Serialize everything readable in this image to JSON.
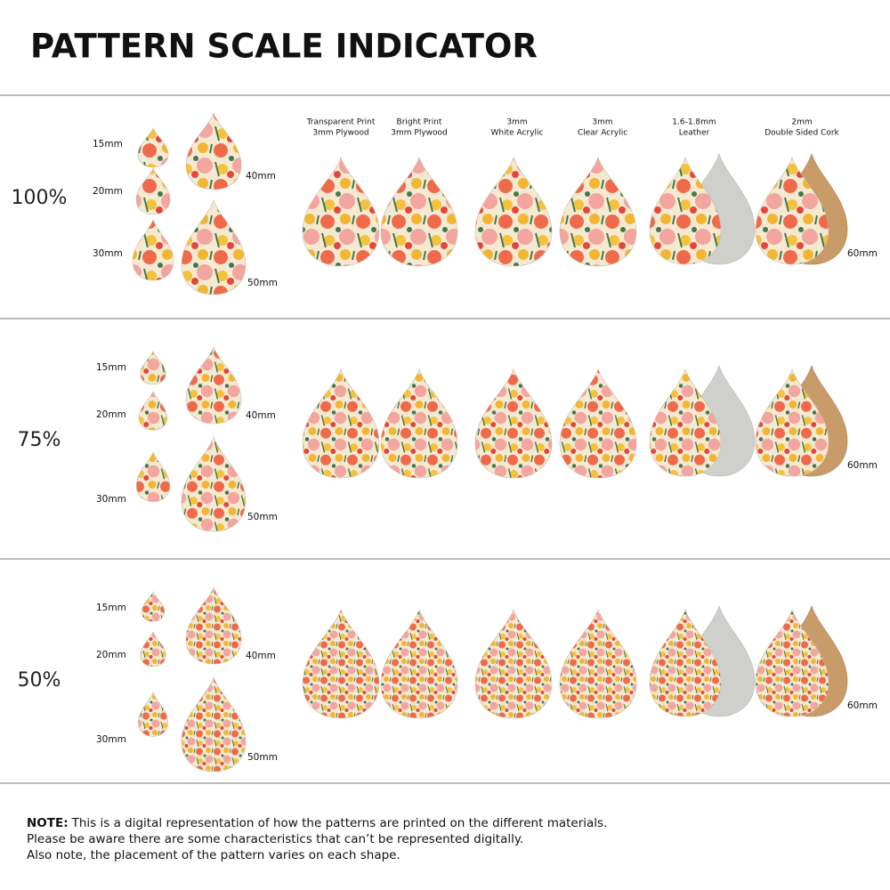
{
  "header": {
    "title": "PATTERN SCALE INDICATOR"
  },
  "materials": [
    {
      "lines": [
        "Transparent Print",
        "3mm Plywood"
      ]
    },
    {
      "lines": [
        "Bright Print",
        "3mm Plywood"
      ]
    },
    {
      "lines": [
        "3mm",
        "White Acrylic"
      ]
    },
    {
      "lines": [
        "3mm",
        "Clear Acrylic"
      ]
    },
    {
      "lines": [
        "1.6-1.8mm",
        "Leather"
      ]
    },
    {
      "lines": [
        "2mm",
        "Double Sided Cork"
      ]
    }
  ],
  "sections": [
    {
      "scale": "100%",
      "sizes": [
        "15mm",
        "20mm",
        "30mm",
        "40mm",
        "50mm"
      ],
      "large_size": "60mm"
    },
    {
      "scale": "75%",
      "sizes": [
        "15mm",
        "20mm",
        "30mm",
        "40mm",
        "50mm"
      ],
      "large_size": "60mm"
    },
    {
      "scale": "50%",
      "sizes": [
        "15mm",
        "20mm",
        "30mm",
        "40mm",
        "50mm"
      ],
      "large_size": "60mm"
    }
  ],
  "note": {
    "label": "NOTE:",
    "lines": [
      "This is a digital representation of how the patterns are printed on the different materials.",
      "Please be aware there are some characteristics that can’t be represented digitally.",
      "Also note, the placement of the pattern varies on each shape."
    ]
  }
}
